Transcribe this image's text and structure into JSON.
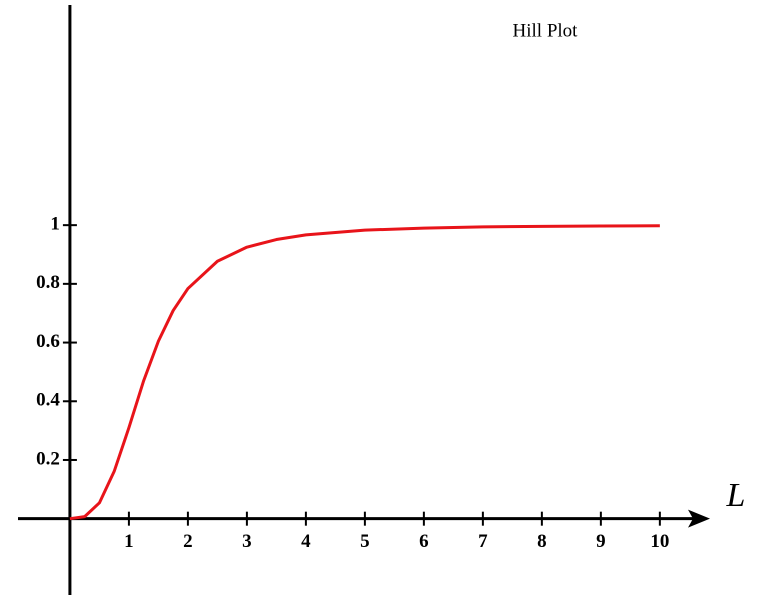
{
  "chart_data": {
    "type": "line",
    "title": "Hill Plot",
    "x_label": "L",
    "x": [
      0,
      0.25,
      0.5,
      0.75,
      1,
      1.25,
      1.5,
      1.75,
      2,
      2.5,
      3,
      3.5,
      4,
      5,
      6,
      7,
      8,
      9,
      10
    ],
    "series": [
      {
        "name": null,
        "color": "#e8141a",
        "values": [
          0,
          0.007,
          0.054,
          0.161,
          0.31,
          0.47,
          0.605,
          0.709,
          0.784,
          0.877,
          0.925,
          0.951,
          0.967,
          0.983,
          0.99,
          0.994,
          0.996,
          0.997,
          0.998
        ]
      }
    ],
    "xlim": [
      -0.88,
      10.85
    ],
    "ylim": [
      -0.26,
      1.75
    ],
    "xticks": [
      1,
      2,
      3,
      4,
      5,
      6,
      7,
      8,
      9,
      10
    ],
    "yticks": [
      0.2,
      0.4,
      0.6,
      0.8,
      1
    ],
    "grid": false
  }
}
